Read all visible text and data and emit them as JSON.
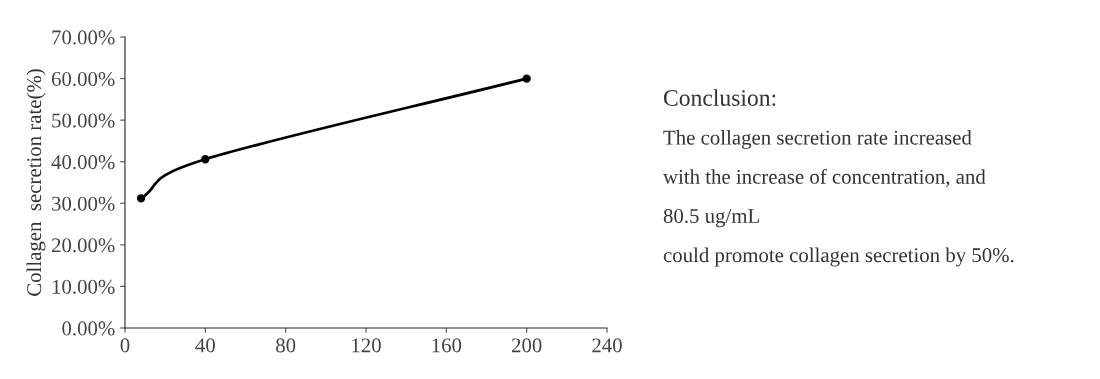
{
  "chart_data": {
    "type": "line",
    "ylabel": "Collagen  secretion rate(%)",
    "x": [
      8,
      40,
      200
    ],
    "series": [
      {
        "color": "#000000",
        "values": [
          31.2,
          40.6,
          60
        ]
      }
    ],
    "marker": "circle",
    "line_style": "solid",
    "grid": false,
    "legend": false,
    "xlim": [
      0,
      240
    ],
    "xticks": [
      0,
      40,
      80,
      120,
      160,
      200,
      240
    ],
    "ylim": [
      0,
      70
    ],
    "yticks": [
      {
        "value": 0,
        "label": "0.00%"
      },
      {
        "value": 10,
        "label": "10.00%"
      },
      {
        "value": 20,
        "label": "20.00%"
      },
      {
        "value": 30,
        "label": "30.00%"
      },
      {
        "value": 40,
        "label": "40.00%"
      },
      {
        "value": 50,
        "label": "50.00%"
      },
      {
        "value": 60,
        "label": "60.00%"
      },
      {
        "value": 70,
        "label": "70.00%"
      }
    ],
    "annotations": [
      "Conclusion:",
      "The collagen secretion rate increased\nwith the increase of concentration, and\n80.5 ug/mL\ncould promote collagen secretion by 50%."
    ]
  }
}
